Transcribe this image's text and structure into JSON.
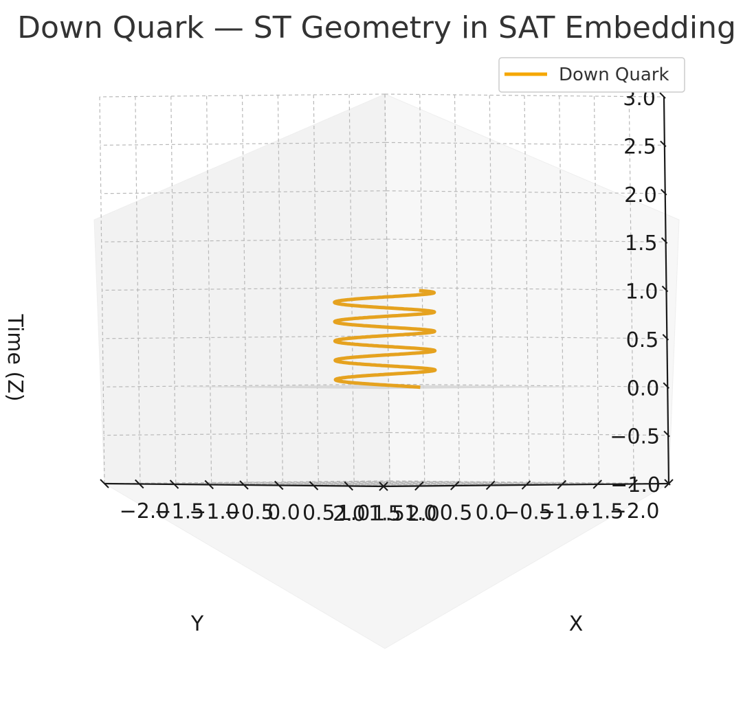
{
  "chart_data": {
    "type": "line3d",
    "title": "Down Quark — ST Geometry in SAT Embedding",
    "xlabel": "X",
    "ylabel": "Y",
    "zlabel": "Time (Z)",
    "xlim": [
      -2.0,
      2.0
    ],
    "ylim": [
      -2.0,
      2.0
    ],
    "zlim": [
      -1.0,
      3.0
    ],
    "x_ticks": [
      "−2.0",
      "−1.5",
      "−1.0",
      "−0.5",
      "0.0",
      "0.5",
      "1.0",
      "1.5",
      "2.0"
    ],
    "y_ticks": [
      "−2.0",
      "−1.5",
      "−1.0",
      "−0.5",
      "0.0",
      "0.5",
      "1.0",
      "1.5",
      "2.0"
    ],
    "z_ticks": [
      "−1.0",
      "−0.5",
      "0.0",
      "0.5",
      "1.0",
      "1.5",
      "2.0",
      "2.5",
      "3.0"
    ],
    "grid": true,
    "legend_position": "top-right",
    "series": [
      {
        "name": "Down Quark",
        "color": "#E5A21F",
        "curve": "helix",
        "radius": 0.5,
        "turns": 5,
        "z_range": [
          0.0,
          1.0
        ],
        "x_offset": 0.0,
        "y_offset": 0.0
      }
    ],
    "plane": {
      "z": 0.0,
      "xlim": [
        -1.5,
        1.5
      ],
      "ylim": [
        -1.5,
        1.5
      ],
      "color": "#d4d4d4"
    }
  }
}
